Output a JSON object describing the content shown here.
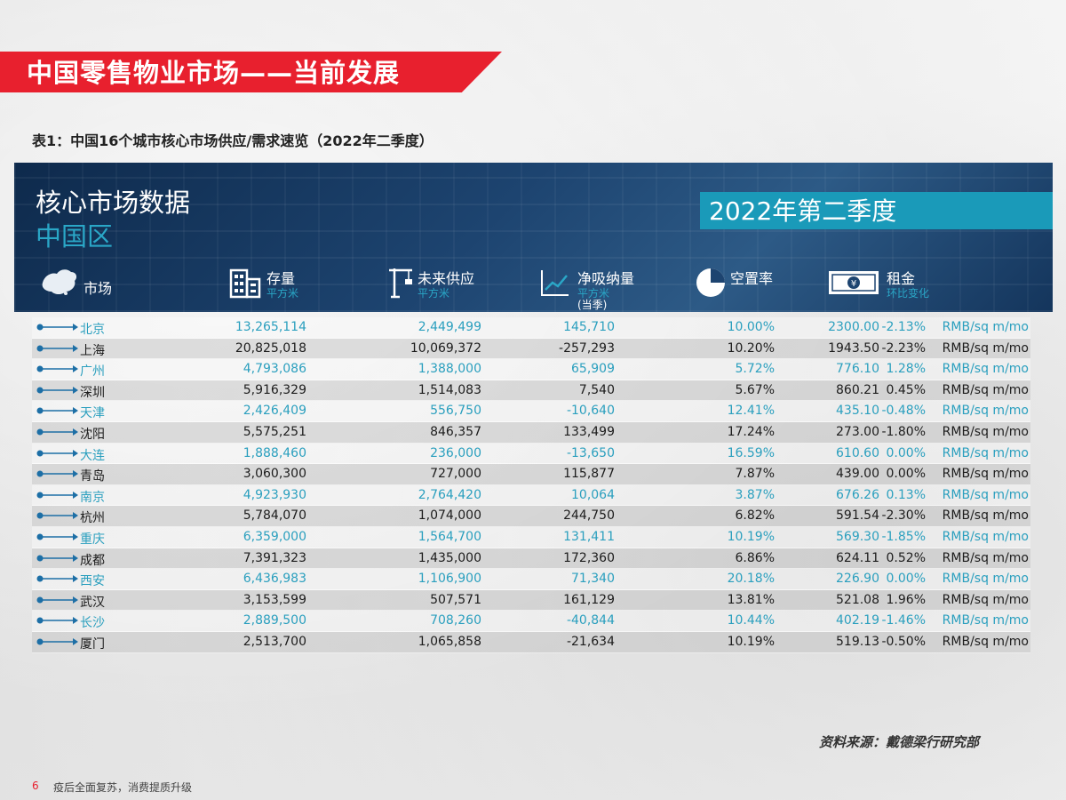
{
  "page_title": "中国零售物业市场——当前发展",
  "caption": "表1：中国16个城市核心市场供应/需求速览（2022年二季度）",
  "panel": {
    "title": "核心市场数据",
    "subtitle": "中国区",
    "period": "2022年第二季度"
  },
  "columns": {
    "market": {
      "label": "市场",
      "icon": "china-map-icon"
    },
    "stock": {
      "label": "存量",
      "sub": "平方米",
      "icon": "building-icon"
    },
    "supply": {
      "label": "未来供应",
      "sub": "平方米",
      "icon": "crane-icon"
    },
    "absorption": {
      "label": "净吸纳量",
      "sub": "平方米",
      "sub2": "(当季)",
      "icon": "trend-chart-icon"
    },
    "vacancy": {
      "label": "空置率",
      "icon": "pie-chart-icon"
    },
    "rent": {
      "label": "租金",
      "sub": "环比变化",
      "icon": "banknote-icon"
    }
  },
  "rows": [
    {
      "city": "北京",
      "stock": "13,265,114",
      "supply": "2,449,499",
      "absorption": "145,710",
      "vacancy": "10.00%",
      "rent": "2300.00",
      "change": "-2.13%",
      "unit": "RMB/sq m/mo"
    },
    {
      "city": "上海",
      "stock": "20,825,018",
      "supply": "10,069,372",
      "absorption": "-257,293",
      "vacancy": "10.20%",
      "rent": "1943.50",
      "change": "-2.23%",
      "unit": "RMB/sq m/mo"
    },
    {
      "city": "广州",
      "stock": "4,793,086",
      "supply": "1,388,000",
      "absorption": "65,909",
      "vacancy": "5.72%",
      "rent": "776.10",
      "change": "1.28%",
      "unit": "RMB/sq m/mo"
    },
    {
      "city": "深圳",
      "stock": "5,916,329",
      "supply": "1,514,083",
      "absorption": "7,540",
      "vacancy": "5.67%",
      "rent": "860.21",
      "change": "0.45%",
      "unit": "RMB/sq m/mo"
    },
    {
      "city": "天津",
      "stock": "2,426,409",
      "supply": "556,750",
      "absorption": "-10,640",
      "vacancy": "12.41%",
      "rent": "435.10",
      "change": "-0.48%",
      "unit": "RMB/sq m/mo"
    },
    {
      "city": "沈阳",
      "stock": "5,575,251",
      "supply": "846,357",
      "absorption": "133,499",
      "vacancy": "17.24%",
      "rent": "273.00",
      "change": "-1.80%",
      "unit": "RMB/sq m/mo"
    },
    {
      "city": "大连",
      "stock": "1,888,460",
      "supply": "236,000",
      "absorption": "-13,650",
      "vacancy": "16.59%",
      "rent": "610.60",
      "change": "0.00%",
      "unit": "RMB/sq m/mo"
    },
    {
      "city": "青岛",
      "stock": "3,060,300",
      "supply": "727,000",
      "absorption": "115,877",
      "vacancy": "7.87%",
      "rent": "439.00",
      "change": "0.00%",
      "unit": "RMB/sq m/mo"
    },
    {
      "city": "南京",
      "stock": "4,923,930",
      "supply": "2,764,420",
      "absorption": "10,064",
      "vacancy": "3.87%",
      "rent": "676.26",
      "change": "0.13%",
      "unit": "RMB/sq m/mo"
    },
    {
      "city": "杭州",
      "stock": "5,784,070",
      "supply": "1,074,000",
      "absorption": "244,750",
      "vacancy": "6.82%",
      "rent": "591.54",
      "change": "-2.30%",
      "unit": "RMB/sq m/mo"
    },
    {
      "city": "重庆",
      "stock": "6,359,000",
      "supply": "1,564,700",
      "absorption": "131,411",
      "vacancy": "10.19%",
      "rent": "569.30",
      "change": "-1.85%",
      "unit": "RMB/sq m/mo"
    },
    {
      "city": "成都",
      "stock": "7,391,323",
      "supply": "1,435,000",
      "absorption": "172,360",
      "vacancy": "6.86%",
      "rent": "624.11",
      "change": "0.52%",
      "unit": "RMB/sq m/mo"
    },
    {
      "city": "西安",
      "stock": "6,436,983",
      "supply": "1,106,900",
      "absorption": "71,340",
      "vacancy": "20.18%",
      "rent": "226.90",
      "change": "0.00%",
      "unit": "RMB/sq m/mo"
    },
    {
      "city": "武汉",
      "stock": "3,153,599",
      "supply": "507,571",
      "absorption": "161,129",
      "vacancy": "13.81%",
      "rent": "521.08",
      "change": "1.96%",
      "unit": "RMB/sq m/mo"
    },
    {
      "city": "长沙",
      "stock": "2,889,500",
      "supply": "708,260",
      "absorption": "-40,844",
      "vacancy": "10.44%",
      "rent": "402.19",
      "change": "-1.46%",
      "unit": "RMB/sq m/mo"
    },
    {
      "city": "厦门",
      "stock": "2,513,700",
      "supply": "1,065,858",
      "absorption": "-21,634",
      "vacancy": "10.19%",
      "rent": "519.13",
      "change": "-0.50%",
      "unit": "RMB/sq m/mo"
    }
  ],
  "source": "资料来源：戴德梁行研究部",
  "footer": {
    "page": "6",
    "text": "疫后全面复苏，消费提质升级"
  },
  "colors": {
    "accent_red": "#e8202e",
    "accent_teal": "#1a9ab9",
    "panel_navy": "#1d4470"
  }
}
